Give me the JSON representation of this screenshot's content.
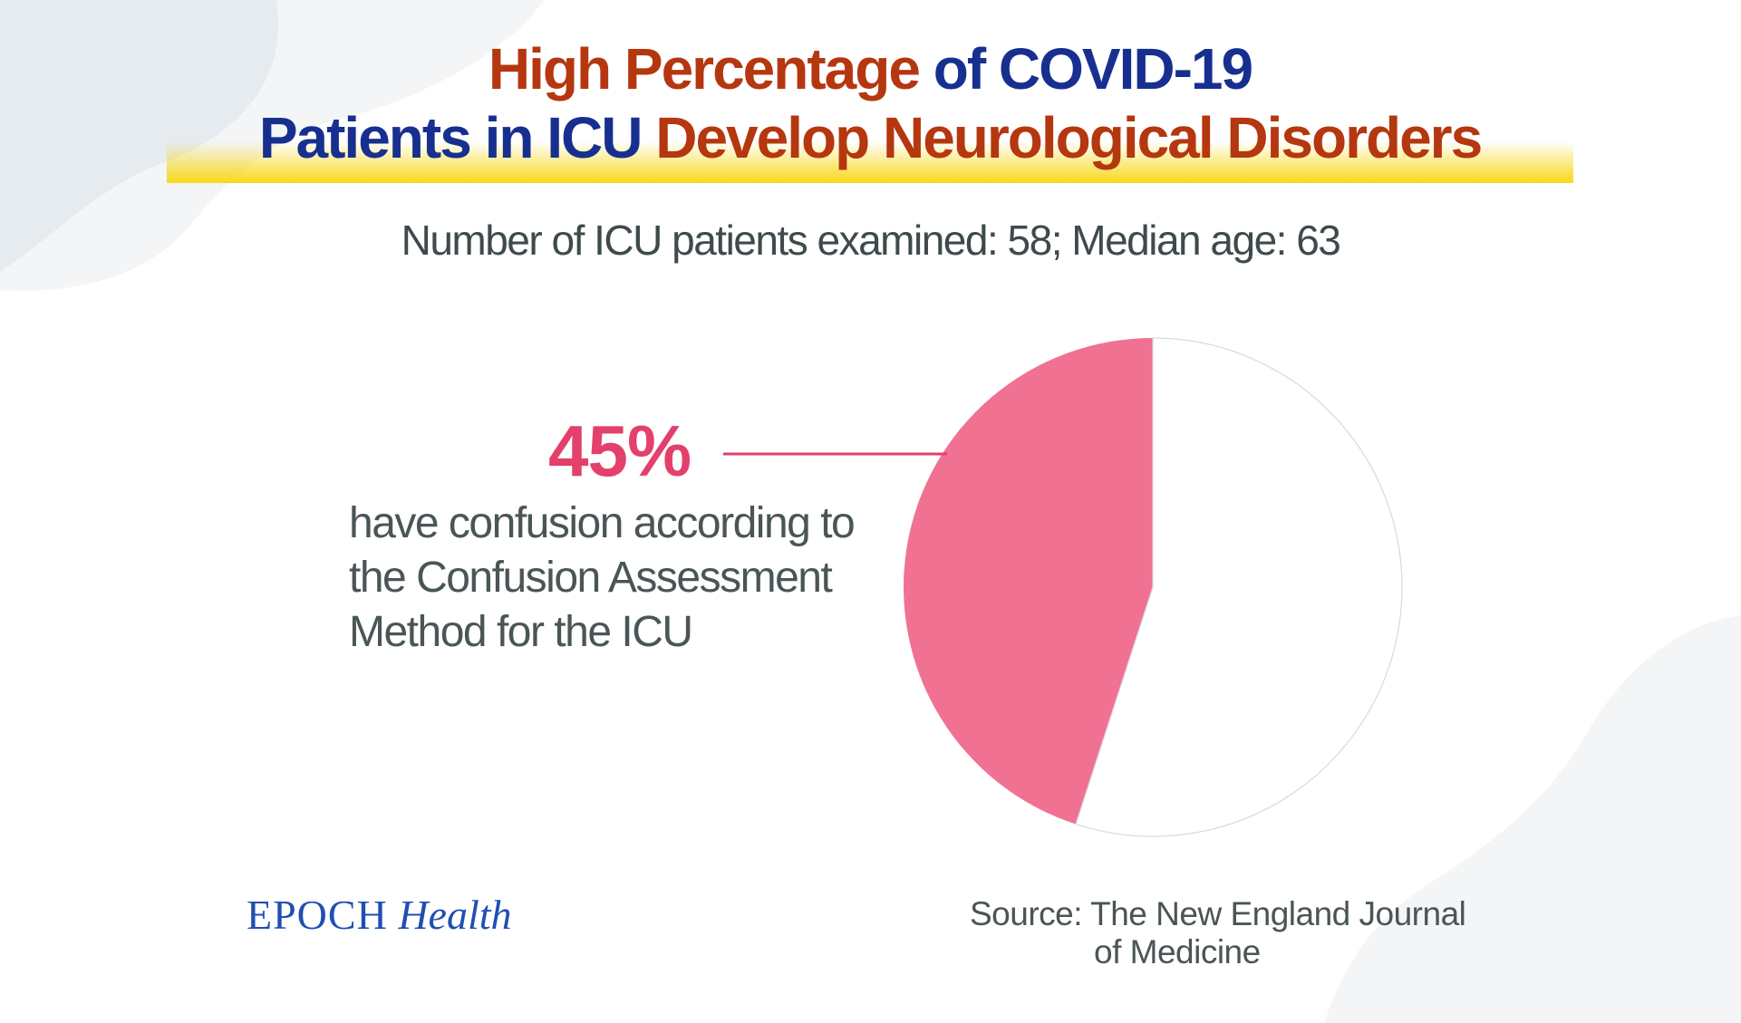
{
  "title": {
    "line1": [
      {
        "text": "High Percentage ",
        "color": "red"
      },
      {
        "text": "of COVID-19",
        "color": "blue"
      }
    ],
    "line2": [
      {
        "text": "Patients in ICU ",
        "color": "blue"
      },
      {
        "text": "Develop Neurological Disorders",
        "color": "red"
      }
    ]
  },
  "subtitle": "Number of ICU patients examined: 58;  Median age: 63",
  "callout": {
    "value": "45%",
    "description_lines": [
      "have confusion according to",
      "the Confusion Assessment",
      "Method for the ICU"
    ]
  },
  "logo": {
    "part1": "EPOCH",
    "part2": "Health"
  },
  "source_lines": [
    "Source: The New England Journal",
    "of Medicine"
  ],
  "colors": {
    "title_red": "#b5370f",
    "title_blue": "#17308f",
    "highlight_slice": "#f17193",
    "callout": "#e3406b",
    "text_gray": "#4a5556",
    "highlight_bar": "#f8d81a",
    "logo_blue": "#1f4fb0"
  },
  "chart_data": {
    "type": "pie",
    "slices": [
      {
        "label": "have confusion according to the Confusion Assessment Method for the ICU",
        "value": 45,
        "color": "#f17193"
      },
      {
        "label": "",
        "value": 55,
        "color": "#ffffff"
      }
    ]
  }
}
